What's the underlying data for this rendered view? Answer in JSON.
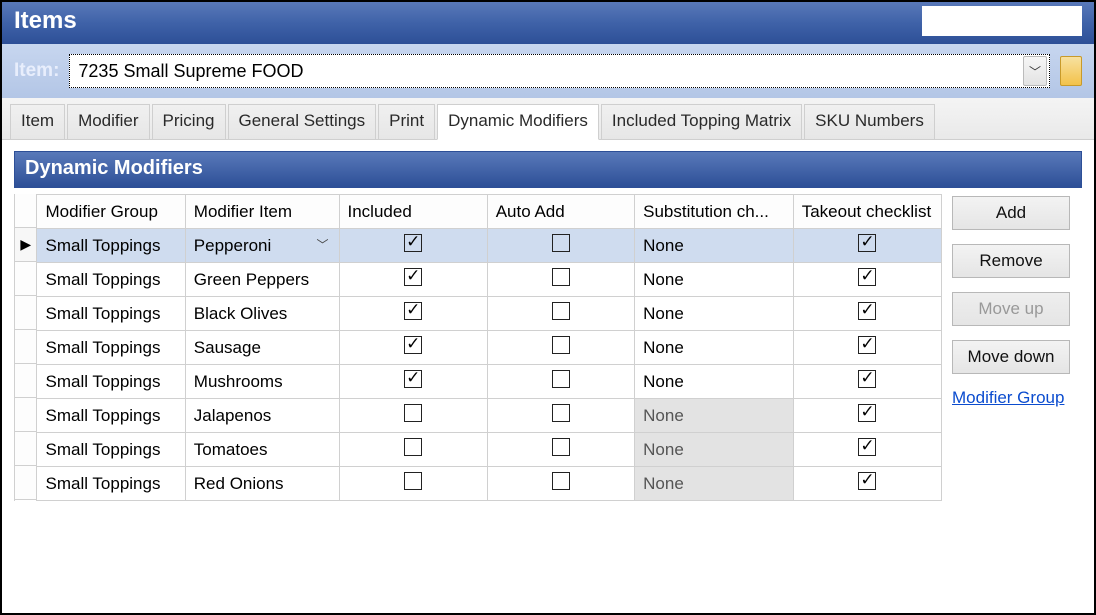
{
  "window": {
    "title": "Items"
  },
  "itemBar": {
    "label": "Item:",
    "value": "7235 Small Supreme FOOD"
  },
  "tabs": [
    {
      "label": "Item",
      "active": false
    },
    {
      "label": "Modifier",
      "active": false
    },
    {
      "label": "Pricing",
      "active": false
    },
    {
      "label": "General Settings",
      "active": false
    },
    {
      "label": "Print",
      "active": false
    },
    {
      "label": "Dynamic Modifiers",
      "active": true
    },
    {
      "label": "Included Topping Matrix",
      "active": false
    },
    {
      "label": "SKU Numbers",
      "active": false
    }
  ],
  "panel": {
    "title": "Dynamic Modifiers"
  },
  "grid": {
    "columns": [
      "Modifier Group",
      "Modifier Item",
      "Included",
      "Auto Add",
      "Substitution ch...",
      "Takeout checklist"
    ],
    "rows": [
      {
        "selected": true,
        "group": "Small Toppings",
        "item": "Pepperoni",
        "included": true,
        "autoAdd": false,
        "sub": "None",
        "subDisabled": false,
        "takeout": true
      },
      {
        "selected": false,
        "group": "Small Toppings",
        "item": "Green Peppers",
        "included": true,
        "autoAdd": false,
        "sub": "None",
        "subDisabled": false,
        "takeout": true
      },
      {
        "selected": false,
        "group": "Small Toppings",
        "item": "Black Olives",
        "included": true,
        "autoAdd": false,
        "sub": "None",
        "subDisabled": false,
        "takeout": true
      },
      {
        "selected": false,
        "group": "Small Toppings",
        "item": "Sausage",
        "included": true,
        "autoAdd": false,
        "sub": "None",
        "subDisabled": false,
        "takeout": true
      },
      {
        "selected": false,
        "group": "Small Toppings",
        "item": "Mushrooms",
        "included": true,
        "autoAdd": false,
        "sub": "None",
        "subDisabled": false,
        "takeout": true
      },
      {
        "selected": false,
        "group": "Small Toppings",
        "item": "Jalapenos",
        "included": false,
        "autoAdd": false,
        "sub": "None",
        "subDisabled": true,
        "takeout": true
      },
      {
        "selected": false,
        "group": "Small Toppings",
        "item": "Tomatoes",
        "included": false,
        "autoAdd": false,
        "sub": "None",
        "subDisabled": true,
        "takeout": true
      },
      {
        "selected": false,
        "group": "Small Toppings",
        "item": "Red Onions",
        "included": false,
        "autoAdd": false,
        "sub": "None",
        "subDisabled": true,
        "takeout": true
      }
    ]
  },
  "buttons": {
    "add": "Add",
    "remove": "Remove",
    "moveUp": "Move up",
    "moveDown": "Move down",
    "modifierGroupLink": "Modifier Group"
  },
  "colWidths": [
    "150px",
    "155px",
    "150px",
    "150px",
    "160px",
    "150px"
  ]
}
